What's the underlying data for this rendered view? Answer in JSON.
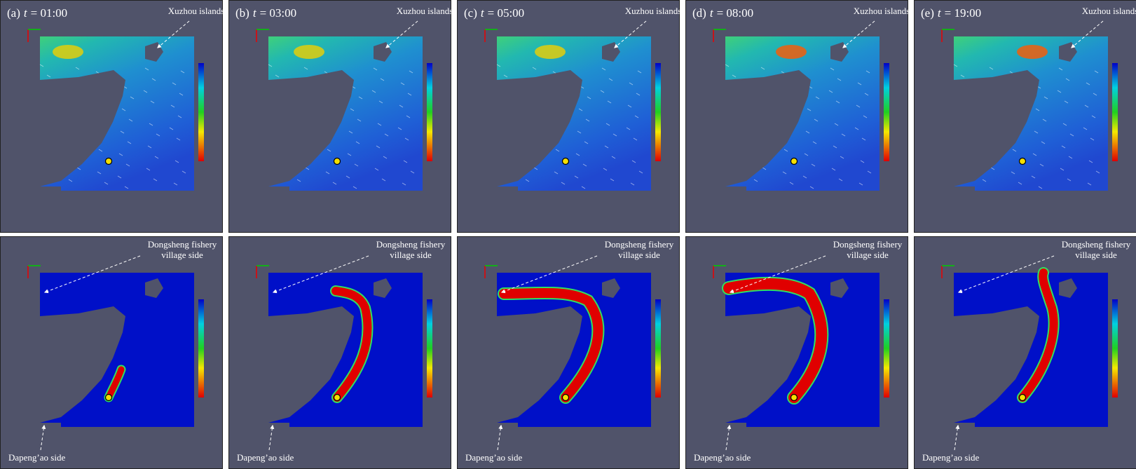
{
  "panels": [
    {
      "label": "(a)",
      "symbol": "t",
      "time": "= 01:00"
    },
    {
      "label": "(b)",
      "symbol": "t",
      "time": "= 03:00"
    },
    {
      "label": "(c)",
      "symbol": "t",
      "time": "= 05:00"
    },
    {
      "label": "(d)",
      "symbol": "t",
      "time": "= 08:00"
    },
    {
      "label": "(e)",
      "symbol": "t",
      "time": "= 19:00"
    }
  ],
  "annotations": {
    "islands": "Xuzhou islands",
    "fishery": [
      "Dongsheng fishery",
      "village side"
    ],
    "dapeng": "Dapeng’ao side"
  }
}
